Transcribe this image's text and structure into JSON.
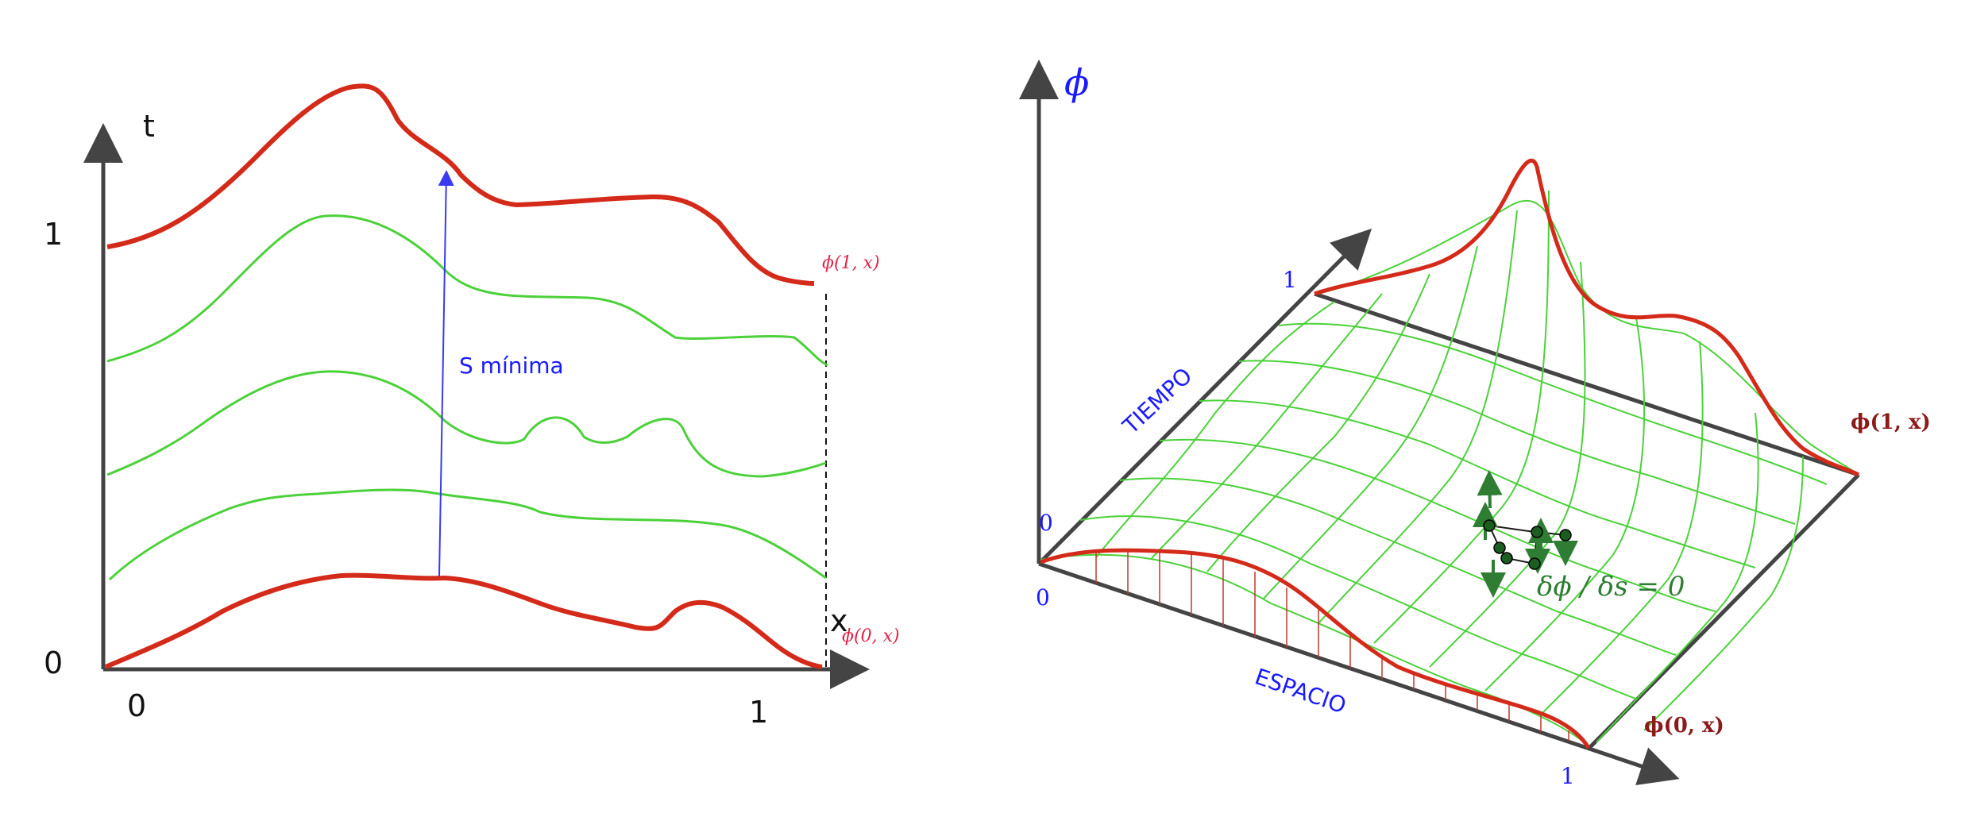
{
  "left_panel": {
    "axis_t_label": "t",
    "axis_x_label": "x",
    "tick_t_1": "1",
    "tick_t_0": "0",
    "tick_x_0": "0",
    "tick_x_1": "1",
    "label_phi_1x": "ϕ(1, x)",
    "label_phi_0x": "ϕ(0, x)",
    "arrow_label": "S mínima"
  },
  "right_panel": {
    "axis_phi_label": "ϕ",
    "tiempo_label": "TIEMPO",
    "espacio_label": "ESPACIO",
    "tick_time_1": "1",
    "tick_time_0": "0",
    "tick_space_0": "0",
    "tick_space_1": "1",
    "label_phi_1x": "ϕ(1, x)",
    "label_phi_0x": "ϕ(0, x)",
    "variation_label": "δϕ / δs = 0"
  },
  "colors": {
    "boundary_red": "#d42a1a",
    "curve_green": "#4cd13a",
    "arrow_blue": "#3a3aee",
    "axis_gray": "#444444"
  }
}
